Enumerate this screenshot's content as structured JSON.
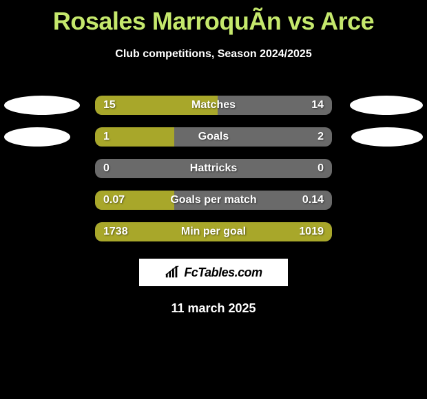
{
  "title": "Rosales MarroquÃ­n vs Arce",
  "subtitle": "Club competitions, Season 2024/2025",
  "date": "11 march 2025",
  "logo_text": "FcTables.com",
  "colors": {
    "background": "#000000",
    "title_color": "#c5e86c",
    "text_color": "#ffffff",
    "bar_track": "#6a6a6a",
    "bar_fill": "#a8a72a",
    "ellipse": "#ffffff"
  },
  "rows": [
    {
      "label": "Matches",
      "left": "15",
      "right": "14",
      "fill_pct": 51.7,
      "show_ellipses": true,
      "ellipse_left_w": 110,
      "ellipse_right_w": 106
    },
    {
      "label": "Goals",
      "left": "1",
      "right": "2",
      "fill_pct": 33.3,
      "show_ellipses": true,
      "ellipse_left_w": 96,
      "ellipse_right_w": 104
    },
    {
      "label": "Hattricks",
      "left": "0",
      "right": "0",
      "fill_pct": 0,
      "show_ellipses": false
    },
    {
      "label": "Goals per match",
      "left": "0.07",
      "right": "0.14",
      "fill_pct": 33.3,
      "show_ellipses": false
    },
    {
      "label": "Min per goal",
      "left": "1738",
      "right": "1019",
      "fill_pct": 100,
      "show_ellipses": false
    }
  ]
}
